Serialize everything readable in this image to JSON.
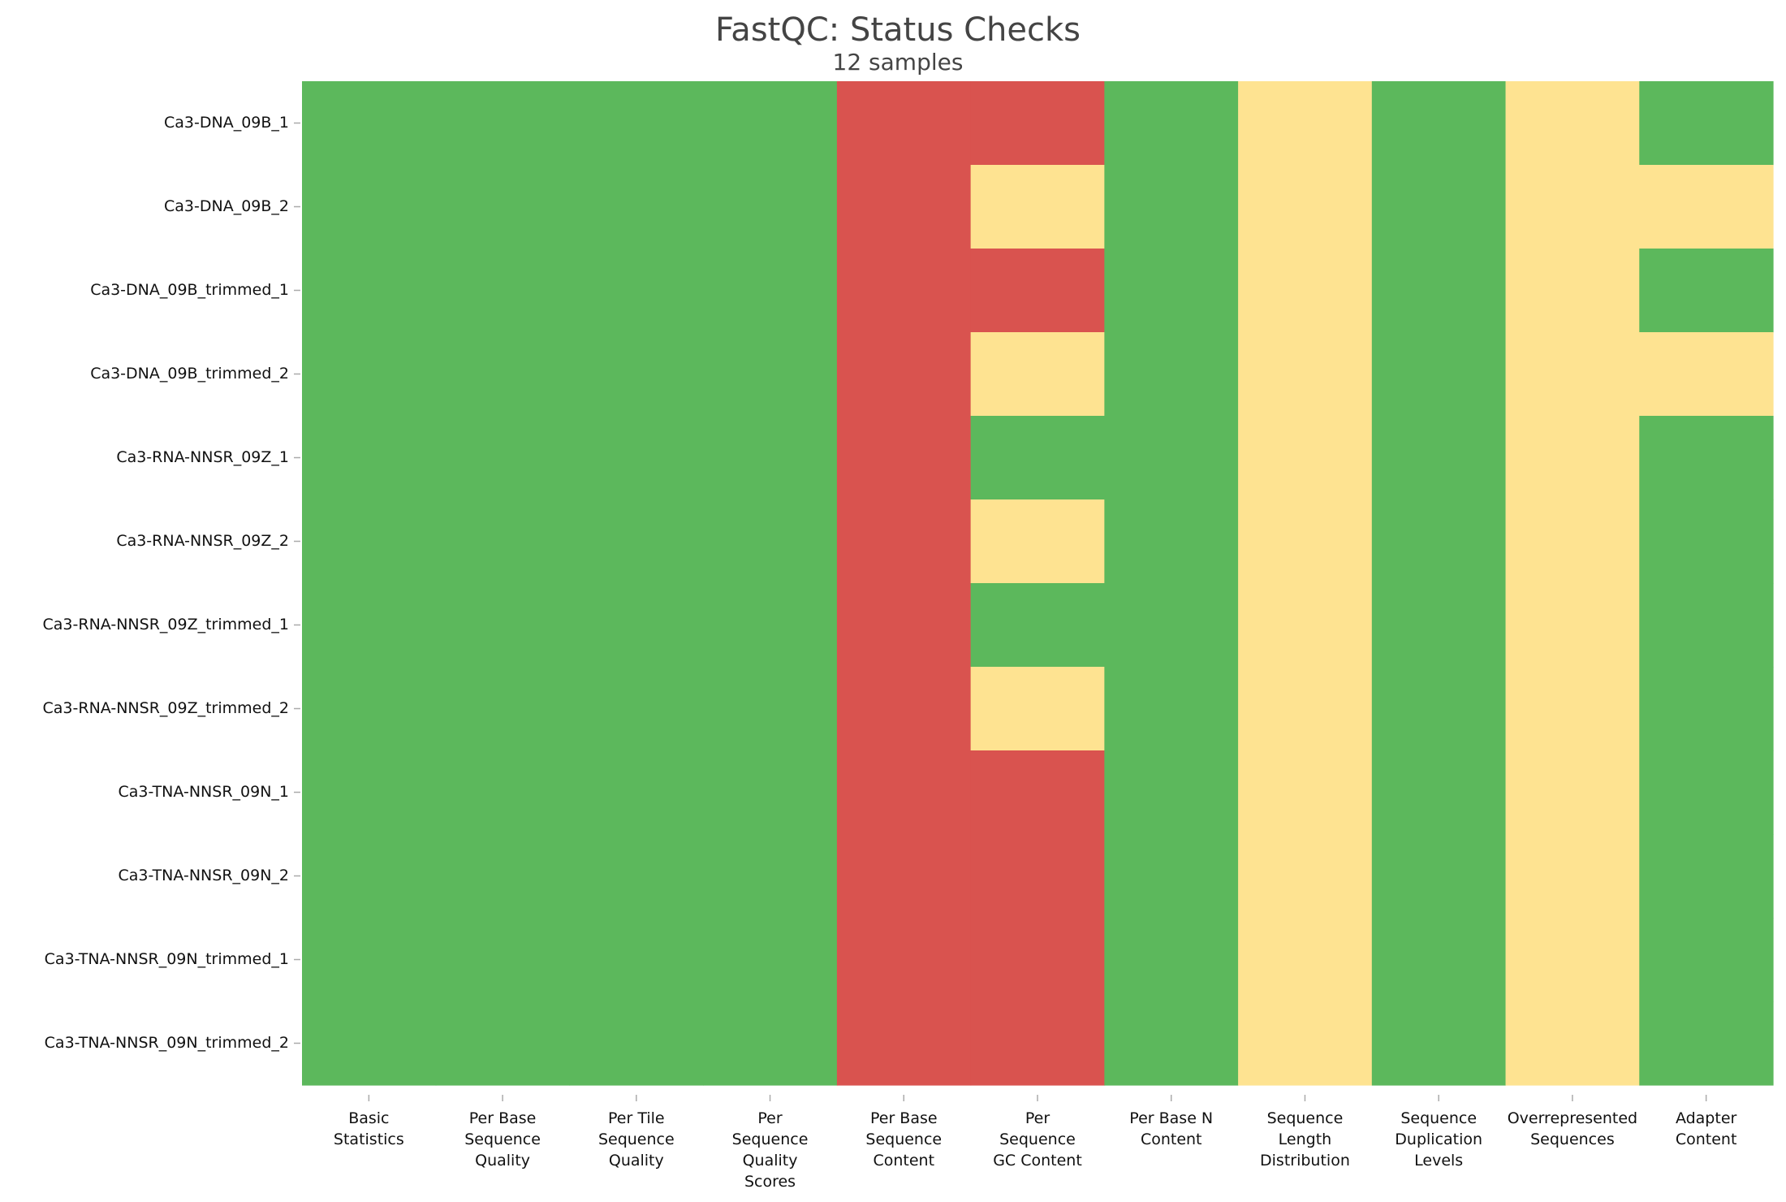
{
  "chart_data": {
    "type": "heatmap",
    "title": "FastQC: Status Checks",
    "subtitle": "12 samples",
    "xlabel": "",
    "ylabel": "",
    "grid": false,
    "legend": "none",
    "status_colors": {
      "pass": "#5cb85c",
      "warn": "#fee391",
      "fail": "#d9534f"
    },
    "columns": [
      {
        "label": "Basic Statistics",
        "lines": [
          "Basic",
          "Statistics"
        ]
      },
      {
        "label": "Per Base Sequence Quality",
        "lines": [
          "Per Base",
          "Sequence",
          "Quality"
        ]
      },
      {
        "label": "Per Tile Sequence Quality",
        "lines": [
          "Per Tile",
          "Sequence",
          "Quality"
        ]
      },
      {
        "label": "Per Sequence Quality Scores",
        "lines": [
          "Per",
          "Sequence",
          "Quality",
          "Scores"
        ]
      },
      {
        "label": "Per Base Sequence Content",
        "lines": [
          "Per Base",
          "Sequence",
          "Content"
        ]
      },
      {
        "label": "Per Sequence GC Content",
        "lines": [
          "Per",
          "Sequence",
          "GC Content"
        ]
      },
      {
        "label": "Per Base N Content",
        "lines": [
          "Per Base N",
          "Content"
        ]
      },
      {
        "label": "Sequence Length Distribution",
        "lines": [
          "Sequence",
          "Length",
          "Distribution"
        ]
      },
      {
        "label": "Sequence Duplication Levels",
        "lines": [
          "Sequence",
          "Duplication",
          "Levels"
        ]
      },
      {
        "label": "Overrepresented Sequences",
        "lines": [
          "Overrepresented",
          "Sequences"
        ]
      },
      {
        "label": "Adapter Content",
        "lines": [
          "Adapter",
          "Content"
        ]
      }
    ],
    "rows": [
      {
        "sample": "Ca3-DNA_09B_1",
        "status": [
          "pass",
          "pass",
          "pass",
          "pass",
          "fail",
          "fail",
          "pass",
          "warn",
          "pass",
          "warn",
          "pass"
        ]
      },
      {
        "sample": "Ca3-DNA_09B_2",
        "status": [
          "pass",
          "pass",
          "pass",
          "pass",
          "fail",
          "warn",
          "pass",
          "warn",
          "pass",
          "warn",
          "warn"
        ]
      },
      {
        "sample": "Ca3-DNA_09B_trimmed_1",
        "status": [
          "pass",
          "pass",
          "pass",
          "pass",
          "fail",
          "fail",
          "pass",
          "warn",
          "pass",
          "warn",
          "pass"
        ]
      },
      {
        "sample": "Ca3-DNA_09B_trimmed_2",
        "status": [
          "pass",
          "pass",
          "pass",
          "pass",
          "fail",
          "warn",
          "pass",
          "warn",
          "pass",
          "warn",
          "warn"
        ]
      },
      {
        "sample": "Ca3-RNA-NNSR_09Z_1",
        "status": [
          "pass",
          "pass",
          "pass",
          "pass",
          "fail",
          "pass",
          "pass",
          "warn",
          "pass",
          "warn",
          "pass"
        ]
      },
      {
        "sample": "Ca3-RNA-NNSR_09Z_2",
        "status": [
          "pass",
          "pass",
          "pass",
          "pass",
          "fail",
          "warn",
          "pass",
          "warn",
          "pass",
          "warn",
          "pass"
        ]
      },
      {
        "sample": "Ca3-RNA-NNSR_09Z_trimmed_1",
        "status": [
          "pass",
          "pass",
          "pass",
          "pass",
          "fail",
          "pass",
          "pass",
          "warn",
          "pass",
          "warn",
          "pass"
        ]
      },
      {
        "sample": "Ca3-RNA-NNSR_09Z_trimmed_2",
        "status": [
          "pass",
          "pass",
          "pass",
          "pass",
          "fail",
          "warn",
          "pass",
          "warn",
          "pass",
          "warn",
          "pass"
        ]
      },
      {
        "sample": "Ca3-TNA-NNSR_09N_1",
        "status": [
          "pass",
          "pass",
          "pass",
          "pass",
          "fail",
          "fail",
          "pass",
          "warn",
          "pass",
          "warn",
          "pass"
        ]
      },
      {
        "sample": "Ca3-TNA-NNSR_09N_2",
        "status": [
          "pass",
          "pass",
          "pass",
          "pass",
          "fail",
          "fail",
          "pass",
          "warn",
          "pass",
          "warn",
          "pass"
        ]
      },
      {
        "sample": "Ca3-TNA-NNSR_09N_trimmed_1",
        "status": [
          "pass",
          "pass",
          "pass",
          "pass",
          "fail",
          "fail",
          "pass",
          "warn",
          "pass",
          "warn",
          "pass"
        ]
      },
      {
        "sample": "Ca3-TNA-NNSR_09N_trimmed_2",
        "status": [
          "pass",
          "pass",
          "pass",
          "pass",
          "fail",
          "fail",
          "pass",
          "warn",
          "pass",
          "warn",
          "pass"
        ]
      }
    ]
  }
}
